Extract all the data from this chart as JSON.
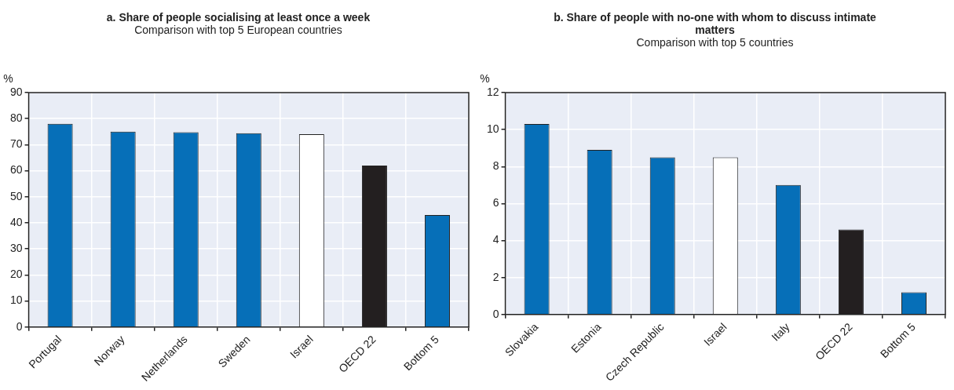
{
  "chart_data": [
    {
      "type": "bar",
      "title": "a. Share of people socialising at least once a week",
      "subtitle": "Comparison with top 5 European countries",
      "ylabel": "%",
      "categories": [
        "Portugal",
        "Norway",
        "Netherlands",
        "Sweden",
        "Israel",
        "OECD 22",
        "Bottom 5"
      ],
      "values": [
        78,
        75,
        74.8,
        74.4,
        74,
        62,
        43
      ],
      "colors": [
        "#066fb8",
        "#066fb8",
        "#066fb8",
        "#066fb8",
        "#ffffff",
        "#231f20",
        "#066fb8"
      ],
      "ylim": [
        0,
        90
      ],
      "yticks": [
        0,
        10,
        20,
        30,
        40,
        50,
        60,
        70,
        80,
        90
      ],
      "grid": true,
      "legend": false
    },
    {
      "type": "bar",
      "title": "b. Share of people with no-one with whom to discuss intimate matters",
      "subtitle": "Comparison with top 5 countries",
      "ylabel": "%",
      "categories": [
        "Slovakia",
        "Estonia",
        "Czech Republic",
        "Israel",
        "Italy",
        "OECD 22",
        "Bottom 5"
      ],
      "values": [
        10.3,
        8.9,
        8.5,
        8.5,
        7,
        4.6,
        1.2
      ],
      "colors": [
        "#066fb8",
        "#066fb8",
        "#066fb8",
        "#ffffff",
        "#066fb8",
        "#231f20",
        "#066fb8"
      ],
      "ylim": [
        0,
        12
      ],
      "yticks": [
        0,
        2,
        4,
        6,
        8,
        10,
        12
      ],
      "grid": true,
      "legend": false
    }
  ]
}
